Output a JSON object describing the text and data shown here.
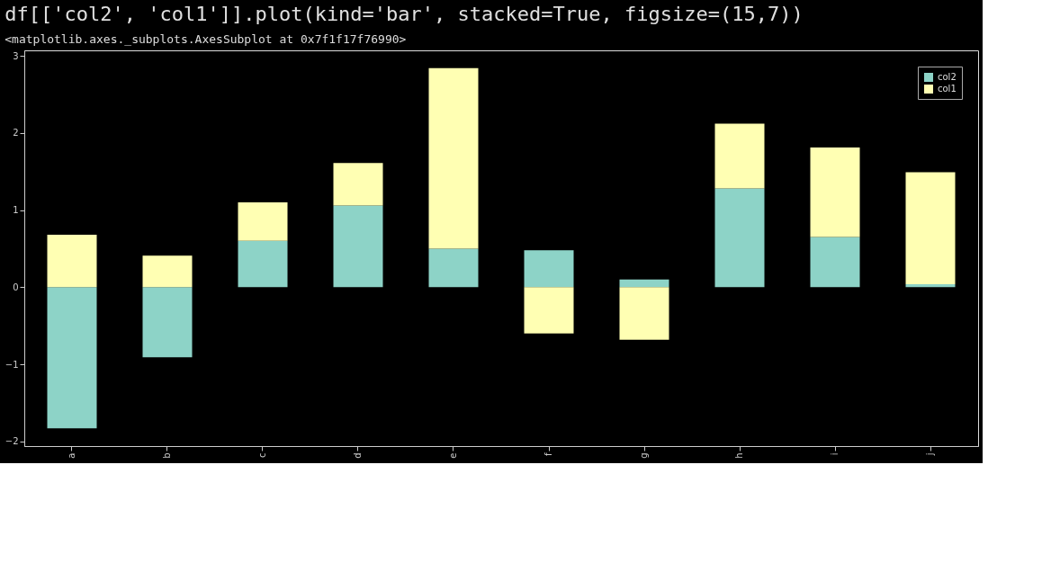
{
  "chart_data": {
    "type": "bar",
    "title": "df[['col2', 'col1']].plot(kind='bar', stacked=True, figsize=(15,7))",
    "subtitle": "<matplotlib.axes._subplots.AxesSubplot at 0x7f1f17f76990>",
    "categories": [
      "a",
      "b",
      "c",
      "d",
      "e",
      "f",
      "g",
      "h",
      "i",
      "j"
    ],
    "series": [
      {
        "name": "col2",
        "color": "#8dd3c7",
        "values": [
          -1.83,
          -0.91,
          0.6,
          1.06,
          0.5,
          0.48,
          0.1,
          1.28,
          0.65,
          0.04
        ]
      },
      {
        "name": "col1",
        "color": "#ffffb3",
        "values": [
          0.68,
          0.41,
          0.5,
          0.55,
          2.34,
          -0.6,
          -0.68,
          0.84,
          1.16,
          1.45
        ]
      }
    ],
    "stacked": true,
    "ylim": [
      -2.06,
      3.07
    ],
    "yticks": [
      -2,
      -1,
      0,
      1,
      2,
      3
    ],
    "grid": false,
    "legend": "top right"
  }
}
